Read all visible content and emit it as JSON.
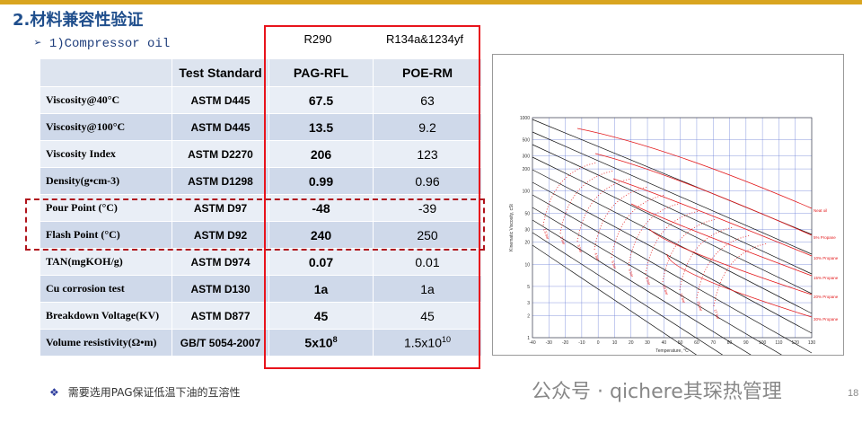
{
  "header": {
    "title": "2.材料兼容性验证",
    "subtitle": "➢ 1)Compressor oil"
  },
  "refrigerants": [
    "R290",
    "R134a&1234yf"
  ],
  "table": {
    "columns": [
      "Test Standard",
      "PAG-RFL",
      "POE-RM"
    ],
    "rows": [
      [
        "Viscosity@40°C",
        "ASTM D445",
        "67.5",
        "63"
      ],
      [
        "Viscosity@100°C",
        "ASTM D445",
        "13.5",
        "9.2"
      ],
      [
        "Viscosity Index",
        "ASTM D2270",
        "206",
        "123"
      ],
      [
        "Density(g•cm-3)",
        "ASTM D1298",
        "0.99",
        "0.96"
      ],
      [
        "Pour Point (°C)",
        "ASTM D97",
        "-48",
        "-39"
      ],
      [
        "Flash Point (°C)",
        "ASTM D92",
        "240",
        "250"
      ],
      [
        "TAN(mgKOH/g)",
        "ASTM D974",
        "0.07",
        "0.01"
      ],
      [
        "Cu corrosion test",
        "ASTM D130",
        "1a",
        "1a"
      ],
      [
        "Breakdown Voltage(KV)",
        "ASTM D877",
        "45",
        "45"
      ],
      [
        "Volume resistivity(Ω•m)",
        "GB/T 5054-2007",
        {
          "base": "5x10",
          "exp": "8"
        },
        {
          "base": "1.5x10",
          "exp": "10"
        }
      ]
    ]
  },
  "chart": {
    "x_label": "Temperature, °C",
    "y_label": "Kinematic Viscosity, cSt",
    "xticks": [
      -40,
      -30,
      -20,
      -10,
      0,
      10,
      20,
      30,
      40,
      50,
      60,
      70,
      80,
      90,
      100,
      110,
      120,
      130
    ],
    "yticks": [
      1000,
      500,
      300,
      200,
      100,
      50,
      30,
      20,
      10,
      5,
      3,
      2,
      1
    ],
    "curve_labels": [
      "Neat oil",
      "5% Propane",
      "10% Propane",
      "15% Propane",
      "20% Propane",
      "30% Propane"
    ],
    "pressure_labels": [
      "1.5 bar",
      "2 bar",
      "3 bar",
      "4 bar",
      "5 bar",
      "6 bar",
      "8 bar",
      "10 bar",
      "12 bar",
      "15 bar",
      "17 bar"
    ]
  },
  "footer": {
    "note": "需要选用PAG保证低温下油的互溶性",
    "watermark": "公众号 · qichere其琛热管理",
    "page": "18"
  }
}
